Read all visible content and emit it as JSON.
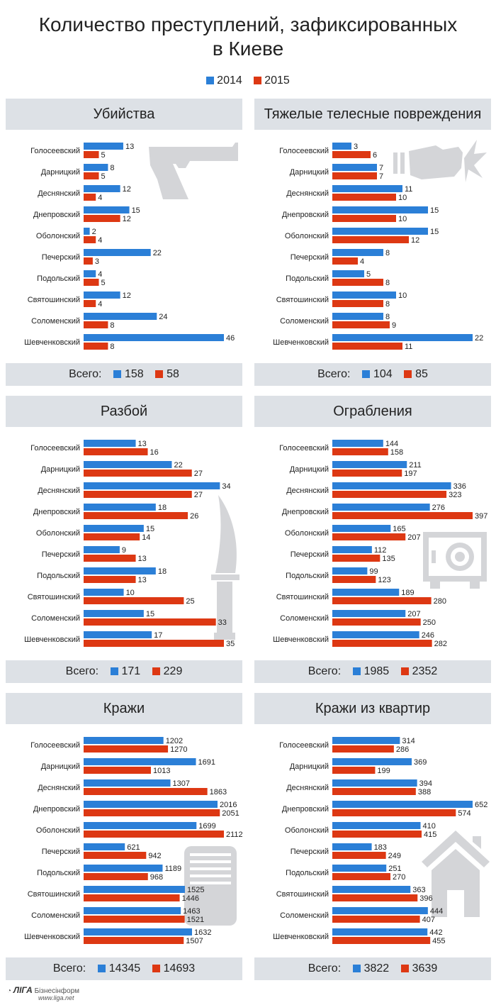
{
  "header": {
    "title_line1": "Количество преступлений, зафиксированных",
    "title_line2": "в Киеве"
  },
  "legend": [
    {
      "label": "2014",
      "color": "#2b7fd7"
    },
    {
      "label": "2015",
      "color": "#dd3813"
    }
  ],
  "colors": {
    "y2014": "#2b7fd7",
    "y2015": "#dd3813",
    "icon": "#d4d5d8"
  },
  "footer_label": "Всего:",
  "branding": {
    "name": "ЛIГА",
    "suffix": "Бізнесінформ",
    "url": "www.liga.net"
  },
  "chart_data": [
    {
      "type": "bar",
      "title": "Убийства",
      "icon": "pistol-icon",
      "max": 46,
      "categories": [
        "Голосеевский",
        "Дарницкий",
        "Деснянский",
        "Днепровский",
        "Оболонский",
        "Печерский",
        "Подольский",
        "Святошинский",
        "Соломенский",
        "Шевченковский"
      ],
      "series": [
        {
          "name": "2014",
          "values": [
            13,
            8,
            12,
            15,
            2,
            22,
            4,
            12,
            24,
            46
          ]
        },
        {
          "name": "2015",
          "values": [
            5,
            5,
            4,
            12,
            4,
            3,
            5,
            4,
            8,
            8
          ]
        }
      ],
      "totals": [
        "158",
        "58"
      ]
    },
    {
      "type": "bar",
      "title": "Тяжелые телесные повреждения",
      "icon": "fist-icon",
      "max": 22,
      "categories": [
        "Голосеевский",
        "Дарницкий",
        "Деснянский",
        "Днепровский",
        "Оболонский",
        "Печерский",
        "Подольский",
        "Святошинский",
        "Соломенский",
        "Шевченковский"
      ],
      "series": [
        {
          "name": "2014",
          "values": [
            3,
            7,
            11,
            15,
            15,
            8,
            5,
            10,
            8,
            22
          ]
        },
        {
          "name": "2015",
          "values": [
            6,
            7,
            10,
            10,
            12,
            4,
            8,
            8,
            9,
            11
          ]
        }
      ],
      "totals": [
        "104",
        "85"
      ]
    },
    {
      "type": "bar",
      "title": "Разбой",
      "icon": "knife-icon",
      "max": 35,
      "categories": [
        "Голосеевский",
        "Дарницкий",
        "Деснянский",
        "Днепровский",
        "Оболонский",
        "Печерский",
        "Подольский",
        "Святошинский",
        "Соломенский",
        "Шевченковский"
      ],
      "series": [
        {
          "name": "2014",
          "values": [
            13,
            22,
            34,
            18,
            15,
            9,
            18,
            10,
            15,
            17
          ]
        },
        {
          "name": "2015",
          "values": [
            16,
            27,
            27,
            26,
            14,
            13,
            13,
            25,
            33,
            35
          ]
        }
      ],
      "totals": [
        "171",
        "229"
      ]
    },
    {
      "type": "bar",
      "title": "Ограбления",
      "icon": "safe-icon",
      "max": 397,
      "categories": [
        "Голосеевский",
        "Дарницкий",
        "Деснянский",
        "Днепровский",
        "Оболонский",
        "Печерский",
        "Подольский",
        "Святошинский",
        "Соломенский",
        "Шевченковский"
      ],
      "series": [
        {
          "name": "2014",
          "values": [
            144,
            211,
            336,
            276,
            165,
            112,
            99,
            189,
            207,
            246
          ]
        },
        {
          "name": "2015",
          "values": [
            158,
            197,
            323,
            397,
            207,
            135,
            123,
            280,
            250,
            282
          ]
        }
      ],
      "totals": [
        "1985",
        "2352"
      ]
    },
    {
      "type": "bar",
      "title": "Кражи",
      "icon": "wallet-icon",
      "max": 2112,
      "categories": [
        "Голосеевский",
        "Дарницкий",
        "Деснянский",
        "Днепровский",
        "Оболонский",
        "Печерский",
        "Подольский",
        "Святошинский",
        "Соломенский",
        "Шевченковский"
      ],
      "series": [
        {
          "name": "2014",
          "values": [
            1202,
            1691,
            1307,
            2016,
            1699,
            621,
            1189,
            1525,
            1463,
            1632
          ]
        },
        {
          "name": "2015",
          "values": [
            1270,
            1013,
            1863,
            2051,
            2112,
            942,
            968,
            1446,
            1521,
            1507
          ]
        }
      ],
      "totals": [
        "14345",
        "14693"
      ]
    },
    {
      "type": "bar",
      "title": "Кражи из квартир",
      "icon": "house-icon",
      "max": 652,
      "categories": [
        "Голосеевский",
        "Дарницкий",
        "Деснянский",
        "Днепровский",
        "Оболонский",
        "Печерский",
        "Подольский",
        "Святошинский",
        "Соломенский",
        "Шевченковский"
      ],
      "series": [
        {
          "name": "2014",
          "values": [
            314,
            369,
            394,
            652,
            410,
            183,
            251,
            363,
            444,
            442
          ]
        },
        {
          "name": "2015",
          "values": [
            286,
            199,
            388,
            574,
            415,
            249,
            270,
            396,
            407,
            455
          ]
        }
      ],
      "totals": [
        "3822",
        "3639"
      ]
    }
  ]
}
